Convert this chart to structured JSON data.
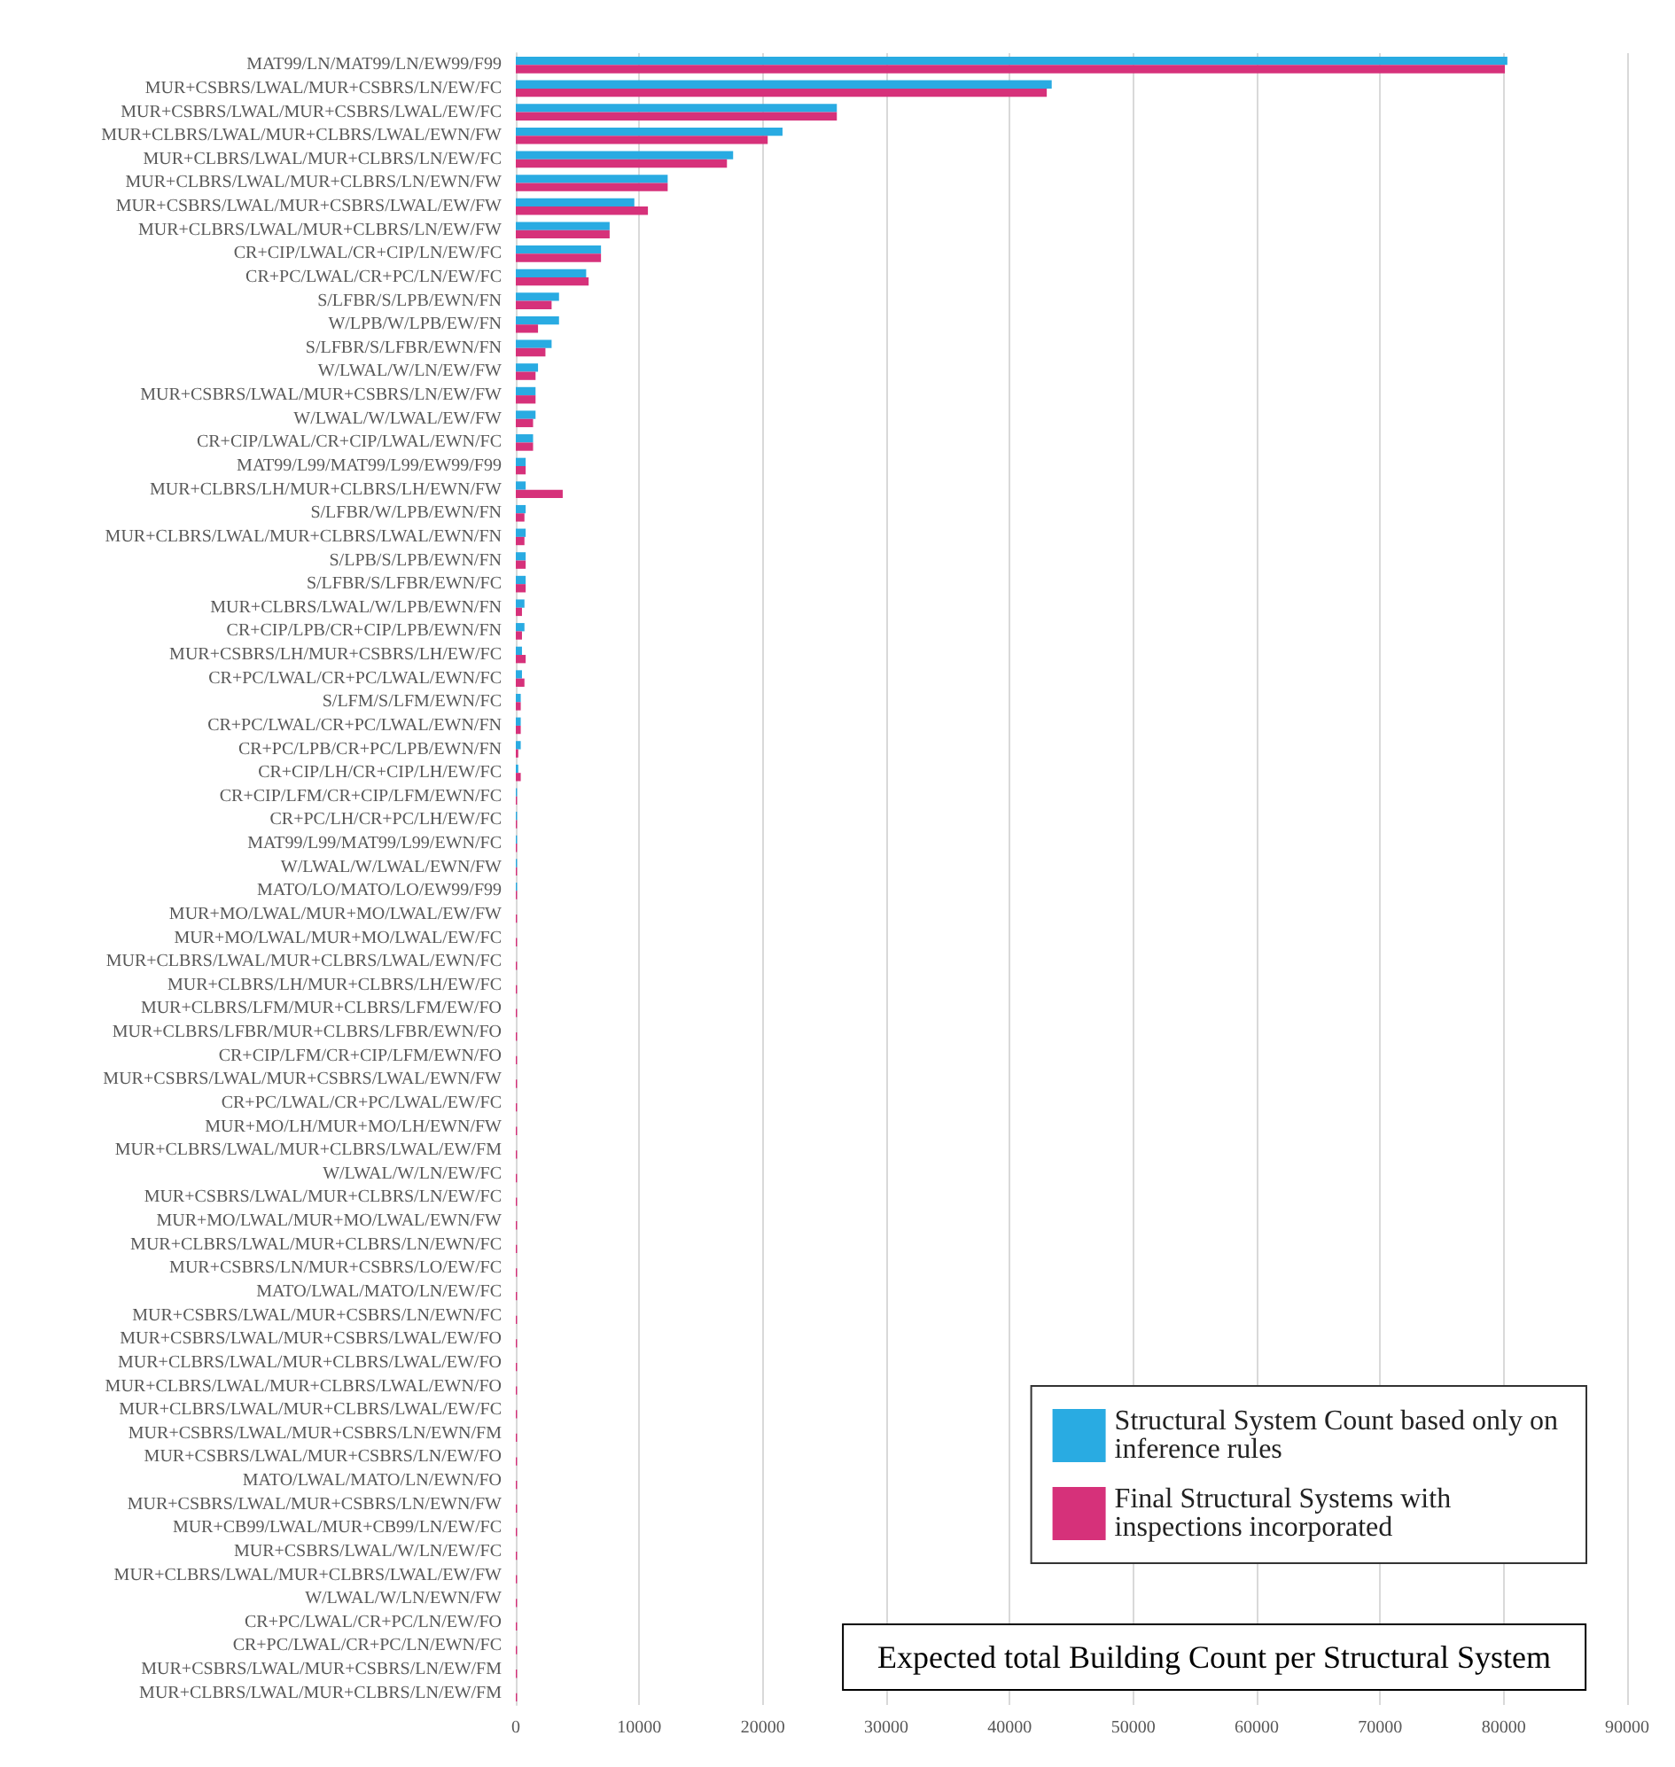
{
  "chart_data": {
    "type": "bar",
    "orientation": "horizontal",
    "title": "Expected total Building Count per Structural System",
    "categories": [
      "MAT99/LN/MAT99/LN/EW99/F99",
      "MUR+CSBRS/LWAL/MUR+CSBRS/LN/EW/FC",
      "MUR+CSBRS/LWAL/MUR+CSBRS/LWAL/EW/FC",
      "MUR+CLBRS/LWAL/MUR+CLBRS/LWAL/EWN/FW",
      "MUR+CLBRS/LWAL/MUR+CLBRS/LN/EW/FC",
      "MUR+CLBRS/LWAL/MUR+CLBRS/LN/EWN/FW",
      "MUR+CSBRS/LWAL/MUR+CSBRS/LWAL/EW/FW",
      "MUR+CLBRS/LWAL/MUR+CLBRS/LN/EW/FW",
      "CR+CIP/LWAL/CR+CIP/LN/EW/FC",
      "CR+PC/LWAL/CR+PC/LN/EW/FC",
      "S/LFBR/S/LPB/EWN/FN",
      "W/LPB/W/LPB/EW/FN",
      "S/LFBR/S/LFBR/EWN/FN",
      "W/LWAL/W/LN/EW/FW",
      "MUR+CSBRS/LWAL/MUR+CSBRS/LN/EW/FW",
      "W/LWAL/W/LWAL/EW/FW",
      "CR+CIP/LWAL/CR+CIP/LWAL/EWN/FC",
      "MAT99/L99/MAT99/L99/EW99/F99",
      "MUR+CLBRS/LH/MUR+CLBRS/LH/EWN/FW",
      "S/LFBR/W/LPB/EWN/FN",
      "MUR+CLBRS/LWAL/MUR+CLBRS/LWAL/EWN/FN",
      "S/LPB/S/LPB/EWN/FN",
      "S/LFBR/S/LFBR/EWN/FC",
      "MUR+CLBRS/LWAL/W/LPB/EWN/FN",
      "CR+CIP/LPB/CR+CIP/LPB/EWN/FN",
      "MUR+CSBRS/LH/MUR+CSBRS/LH/EW/FC",
      "CR+PC/LWAL/CR+PC/LWAL/EWN/FC",
      "S/LFM/S/LFM/EWN/FC",
      "CR+PC/LWAL/CR+PC/LWAL/EWN/FN",
      "CR+PC/LPB/CR+PC/LPB/EWN/FN",
      "CR+CIP/LH/CR+CIP/LH/EW/FC",
      "CR+CIP/LFM/CR+CIP/LFM/EWN/FC",
      "CR+PC/LH/CR+PC/LH/EW/FC",
      "MAT99/L99/MAT99/L99/EWN/FC",
      "W/LWAL/W/LWAL/EWN/FW",
      "MATO/LO/MATO/LO/EW99/F99",
      "MUR+MO/LWAL/MUR+MO/LWAL/EW/FW",
      "MUR+MO/LWAL/MUR+MO/LWAL/EW/FC",
      "MUR+CLBRS/LWAL/MUR+CLBRS/LWAL/EWN/FC",
      "MUR+CLBRS/LH/MUR+CLBRS/LH/EW/FC",
      "MUR+CLBRS/LFM/MUR+CLBRS/LFM/EW/FO",
      "MUR+CLBRS/LFBR/MUR+CLBRS/LFBR/EWN/FO",
      "CR+CIP/LFM/CR+CIP/LFM/EWN/FO",
      "MUR+CSBRS/LWAL/MUR+CSBRS/LWAL/EWN/FW",
      "CR+PC/LWAL/CR+PC/LWAL/EW/FC",
      "MUR+MO/LH/MUR+MO/LH/EWN/FW",
      "MUR+CLBRS/LWAL/MUR+CLBRS/LWAL/EW/FM",
      "W/LWAL/W/LN/EW/FC",
      "MUR+CSBRS/LWAL/MUR+CLBRS/LN/EW/FC",
      "MUR+MO/LWAL/MUR+MO/LWAL/EWN/FW",
      "MUR+CLBRS/LWAL/MUR+CLBRS/LN/EWN/FC",
      "MUR+CSBRS/LN/MUR+CSBRS/LO/EW/FC",
      "MATO/LWAL/MATO/LN/EW/FC",
      "MUR+CSBRS/LWAL/MUR+CSBRS/LN/EWN/FC",
      "MUR+CSBRS/LWAL/MUR+CSBRS/LWAL/EW/FO",
      "MUR+CLBRS/LWAL/MUR+CLBRS/LWAL/EW/FO",
      "MUR+CLBRS/LWAL/MUR+CLBRS/LWAL/EWN/FO",
      "MUR+CLBRS/LWAL/MUR+CLBRS/LWAL/EW/FC",
      "MUR+CSBRS/LWAL/MUR+CSBRS/LN/EWN/FM",
      "MUR+CSBRS/LWAL/MUR+CSBRS/LN/EW/FO",
      "MATO/LWAL/MATO/LN/EWN/FO",
      "MUR+CSBRS/LWAL/MUR+CSBRS/LN/EWN/FW",
      "MUR+CB99/LWAL/MUR+CB99/LN/EW/FC",
      "MUR+CSBRS/LWAL/W/LN/EW/FC",
      "MUR+CLBRS/LWAL/MUR+CLBRS/LWAL/EW/FW",
      "W/LWAL/W/LN/EWN/FW",
      "CR+PC/LWAL/CR+PC/LN/EW/FO",
      "CR+PC/LWAL/CR+PC/LN/EWN/FC",
      "MUR+CSBRS/LWAL/MUR+CSBRS/LN/EW/FM",
      "MUR+CLBRS/LWAL/MUR+CLBRS/LN/EW/FM"
    ],
    "series": [
      {
        "name": "Structural System Count based only on inference rules",
        "color": "#29abe2",
        "values": [
          80300,
          43400,
          26000,
          21600,
          17600,
          12300,
          9600,
          7600,
          6900,
          5700,
          3500,
          3500,
          2900,
          1800,
          1600,
          1600,
          1400,
          800,
          800,
          800,
          800,
          800,
          800,
          700,
          700,
          500,
          500,
          400,
          400,
          400,
          200,
          100,
          100,
          100,
          100,
          100,
          0,
          0,
          0,
          0,
          0,
          0,
          0,
          0,
          0,
          0,
          0,
          0,
          0,
          0,
          0,
          0,
          0,
          0,
          0,
          0,
          0,
          0,
          0,
          0,
          0,
          0,
          0,
          0,
          0,
          0,
          0,
          0,
          0,
          0
        ]
      },
      {
        "name": "Final Structural Systems with inspections incorporated",
        "color": "#d6317a",
        "values": [
          80100,
          43000,
          26000,
          20400,
          17100,
          12300,
          10700,
          7600,
          6900,
          5900,
          2900,
          1800,
          2400,
          1600,
          1600,
          1400,
          1400,
          800,
          3800,
          700,
          700,
          800,
          800,
          500,
          500,
          800,
          700,
          400,
          400,
          200,
          400,
          100,
          100,
          100,
          100,
          100,
          100,
          100,
          100,
          100,
          100,
          100,
          100,
          100,
          100,
          100,
          100,
          100,
          100,
          100,
          100,
          100,
          100,
          100,
          100,
          100,
          100,
          100,
          100,
          100,
          100,
          100,
          100,
          100,
          100,
          100,
          100,
          100,
          100,
          100
        ]
      }
    ],
    "xlim": [
      0,
      90000
    ],
    "xticks": [
      0,
      10000,
      20000,
      30000,
      40000,
      50000,
      60000,
      70000,
      80000,
      90000
    ],
    "grid": "x",
    "legend": "bottom right"
  }
}
